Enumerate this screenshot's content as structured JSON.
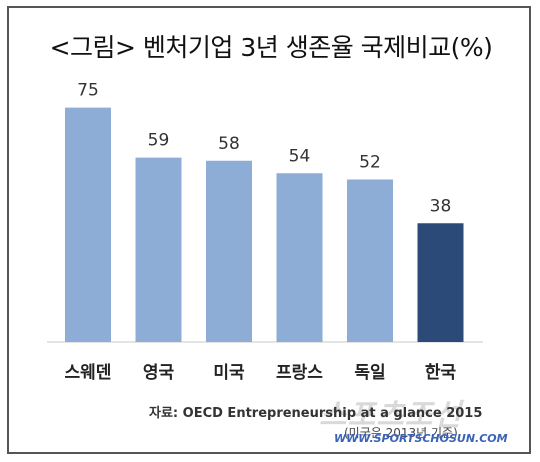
{
  "title": "<그림> 벤처기업 3년 생존율 국제비교(%)",
  "chart_data": {
    "type": "bar",
    "title": "<그림> 벤처기업 3년 생존율 국제비교(%)",
    "categories": [
      "스웨덴",
      "영국",
      "미국",
      "프랑스",
      "독일",
      "한국"
    ],
    "values": [
      75,
      59,
      58,
      54,
      52,
      38
    ],
    "value_labels": [
      "75",
      "59",
      "58",
      "54",
      "52",
      "38"
    ],
    "ylim": [
      0,
      80
    ],
    "grid": false,
    "legend": "none",
    "colors": {
      "bar": "#8eadd6",
      "highlight": "#2c4a78",
      "highlight_category": "한국",
      "baseline": "#c8c8c8"
    }
  },
  "source": {
    "line1": "자료: OECD Entrepreneurship at a glance 2015",
    "line2": "(미국은 2013년 기준)"
  },
  "watermark": {
    "brand": "스포츠조선",
    "url": "WWW.SPORTSCHOSUN.COM"
  }
}
